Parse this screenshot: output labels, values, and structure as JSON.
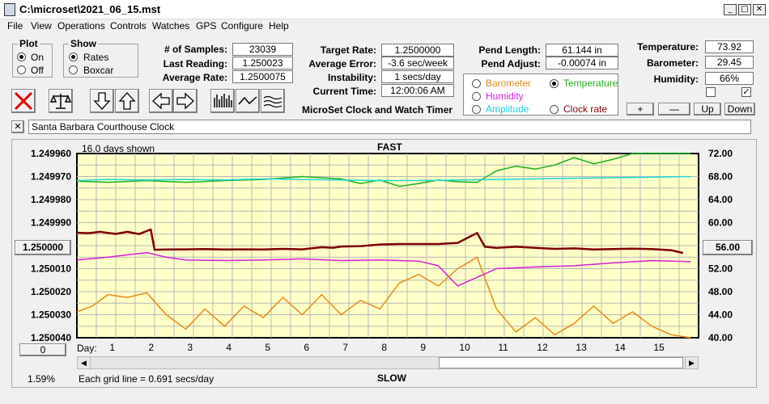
{
  "window": {
    "title": "C:\\microset\\2021_06_15.mst",
    "min": "_",
    "max": "□",
    "close": "✕"
  },
  "menu": [
    "File",
    "View",
    "Operations",
    "Controls",
    "Watches",
    "GPS",
    "Configure",
    "Help"
  ],
  "plot": {
    "title": "Plot",
    "on": "On",
    "off": "Off",
    "selected": "On"
  },
  "show": {
    "title": "Show",
    "rates": "Rates",
    "boxcar": "Boxcar",
    "selected": "Rates"
  },
  "stats": {
    "samples_label": "# of Samples:",
    "samples": "23039",
    "last_label": "Last Reading:",
    "last": "1.250023",
    "avg_label": "Average Rate:",
    "avg": "1.2500075",
    "target_label": "Target Rate:",
    "target": "1.2500000",
    "avgerr_label": "Average Error:",
    "avgerr": "-3.6 sec/week",
    "instab_label": "Instability:",
    "instab": "1 secs/day",
    "time_label": "Current Time:",
    "time": "12:00:06 AM",
    "pendlen_label": "Pend Length:",
    "pendlen": "61.144 in",
    "pendadj_label": "Pend Adjust:",
    "pendadj": "-0.00074 in",
    "temp_label": "Temperature:",
    "temp": "73.92",
    "baro_label": "Barometer:",
    "baro": "29.45",
    "hum_label": "Humidity:",
    "hum": "66%"
  },
  "app_name": "MicroSet Clock and Watch Timer",
  "sensors": {
    "barometer": "Barometer",
    "temperature": "Temperature",
    "humidity": "Humidity",
    "amplitude": "Amplitude",
    "clockrate": "Clock rate",
    "selected": "Temperature",
    "colors": {
      "barometer": "#e88a1a",
      "temperature": "#1db01d",
      "humidity": "#d61ed6",
      "amplitude": "#1ed6d6",
      "clockrate": "#800000"
    }
  },
  "adjust_buttons": {
    "plus": "+",
    "minus": "—",
    "up": "Up",
    "down": "Down"
  },
  "checkbox_checked": "✓",
  "clock_name": "Santa Barbara Courthouse Clock",
  "clock_clear": "✕",
  "chart": {
    "days_shown": "16.0 days shown",
    "top_label": "FAST",
    "bottom_label": "SLOW",
    "left_value_button": "1.250000",
    "right_value_button": "56.00",
    "zero_button": "0",
    "day_label": "Day:",
    "grid_note": "Each grid line = 0.691 secs/day",
    "percent": "1.59%"
  },
  "chart_data": {
    "type": "line",
    "x_label": "Day:",
    "x_ticks": [
      "1",
      "2",
      "3",
      "4",
      "5",
      "6",
      "7",
      "8",
      "9",
      "10",
      "11",
      "12",
      "13",
      "14",
      "15"
    ],
    "y_left_ticks": [
      "1.249960",
      "1.249970",
      "1.249980",
      "1.249990",
      "1.250000",
      "1.250010",
      "1.250020",
      "1.250030",
      "1.250040"
    ],
    "y_right_ticks": [
      "72.00",
      "68.00",
      "64.00",
      "60.00",
      "56.00",
      "52.00",
      "48.00",
      "44.00",
      "40.00"
    ],
    "y_right_range": [
      40,
      72
    ],
    "x_range": [
      0.2,
      16.2
    ],
    "grid": true,
    "series": [
      {
        "key": "temperature",
        "color": "#1db01d",
        "x": [
          0.2,
          1,
          2,
          3,
          4,
          5,
          6,
          7,
          7.5,
          8,
          8.5,
          9,
          9.5,
          10,
          10.5,
          11,
          11.5,
          12,
          12.5,
          13,
          13.5,
          14,
          14.5,
          15,
          15.5,
          16
        ],
        "y": [
          67.2,
          67.0,
          67.3,
          67.0,
          67.3,
          67.5,
          68.0,
          67.6,
          66.8,
          67.4,
          66.3,
          66.8,
          67.4,
          67.1,
          67.0,
          69.0,
          69.8,
          69.3,
          70.0,
          71.3,
          70.2,
          71.0,
          72.0,
          72.0,
          72.0,
          72.0
        ]
      },
      {
        "key": "amplitude",
        "color": "#1ed6d6",
        "x": [
          0.2,
          1,
          2,
          3,
          4,
          5,
          6,
          7,
          8,
          9,
          10,
          11,
          12,
          13,
          14,
          15,
          16
        ],
        "y": [
          67.3,
          67.5,
          67.4,
          67.5,
          67.4,
          67.6,
          67.5,
          67.4,
          67.3,
          67.3,
          67.4,
          67.5,
          67.6,
          67.7,
          67.8,
          67.9,
          68.0
        ]
      },
      {
        "key": "humidity",
        "color": "#d61ed6",
        "x": [
          0.2,
          1,
          2,
          2.5,
          3,
          4,
          5,
          6,
          7,
          8,
          9,
          9.5,
          10,
          10.5,
          11,
          12,
          13,
          14,
          15,
          16
        ],
        "y": [
          53.5,
          54.0,
          54.8,
          54.0,
          53.5,
          53.4,
          53.5,
          53.7,
          53.4,
          53.5,
          53.3,
          52.5,
          49.0,
          50.5,
          52.0,
          52.3,
          52.5,
          53.0,
          53.4,
          53.2
        ]
      },
      {
        "key": "barometer",
        "color": "#e88a1a",
        "x": [
          0.2,
          0.6,
          1,
          1.5,
          2,
          2.5,
          3,
          3.5,
          4,
          4.5,
          5,
          5.5,
          6,
          6.5,
          7,
          7.5,
          8,
          8.5,
          9,
          9.5,
          10,
          10.5,
          11,
          11.5,
          12,
          12.5,
          13,
          13.5,
          14,
          14.5,
          15,
          15.5,
          16
        ],
        "y": [
          44.5,
          45.5,
          47.5,
          47.0,
          47.8,
          44.0,
          41.5,
          45.0,
          42.0,
          45.5,
          43.5,
          47.0,
          44.0,
          47.5,
          44.0,
          46.5,
          45.0,
          49.5,
          51.0,
          49.0,
          52.0,
          54.0,
          45.0,
          41.0,
          43.5,
          40.5,
          42.5,
          45.5,
          42.5,
          44.5,
          42.0,
          40.5,
          40.0
        ]
      },
      {
        "key": "clockrate",
        "color": "#800000",
        "x": [
          0.2,
          0.5,
          0.8,
          1.2,
          1.5,
          1.8,
          2.1,
          2.2,
          2.5,
          3,
          3.5,
          4,
          4.5,
          5,
          5.5,
          6,
          6.5,
          6.8,
          7,
          7.5,
          8,
          8.5,
          9,
          9.5,
          10,
          10.5,
          10.7,
          11,
          11.5,
          12,
          12.5,
          13,
          13.5,
          14,
          14.5,
          15,
          15.3,
          15.5,
          15.8
        ],
        "y": [
          1.2499944,
          1.2499946,
          1.249994,
          1.2499949,
          1.249994,
          1.249995,
          1.249993,
          1.2500018,
          1.2500017,
          1.2500016,
          1.2500015,
          1.2500017,
          1.2500016,
          1.2500017,
          1.2500014,
          1.2500016,
          1.2500007,
          1.2500009,
          1.2500004,
          1.2500002,
          1.2499995,
          1.2499993,
          1.2499993,
          1.2499993,
          1.2499988,
          1.2499945,
          1.2500005,
          1.250001,
          1.2500005,
          1.250001,
          1.2500014,
          1.2500012,
          1.2500017,
          1.2500015,
          1.2500013,
          1.2500015,
          1.2500018,
          1.250002,
          1.2500032
        ]
      }
    ]
  }
}
